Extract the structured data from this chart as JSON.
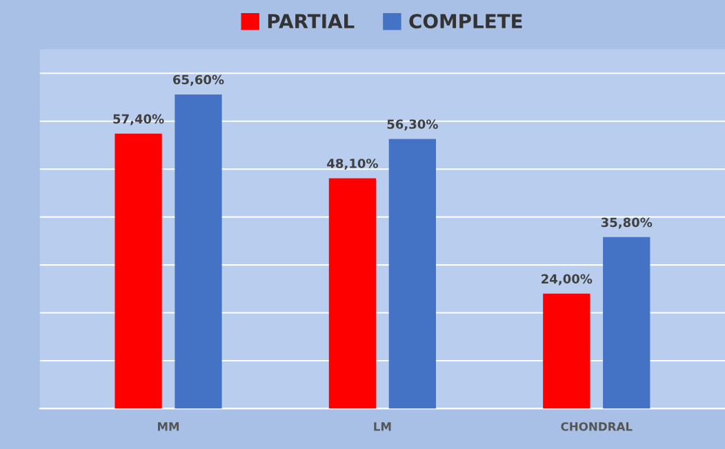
{
  "chart_data": {
    "type": "bar",
    "categories": [
      "MM",
      "LM",
      "CHONDRAL"
    ],
    "series": [
      {
        "name": "PARTIAL",
        "color": "#ff0000",
        "values": [
          57.4,
          48.1,
          24.0
        ],
        "value_labels": [
          "57,40%",
          "48,10%",
          "24,00%"
        ]
      },
      {
        "name": "COMPLETE",
        "color": "#4472c4",
        "values": [
          65.6,
          56.3,
          35.8
        ],
        "value_labels": [
          "65,60%",
          "56,30%",
          "35,80%"
        ]
      }
    ],
    "ylim": [
      0,
      75
    ],
    "yticks": [
      {
        "value": 0,
        "label": null
      },
      {
        "value": 10,
        "label": null
      },
      {
        "value": 20,
        "label": null
      },
      {
        "value": 30,
        "label": null
      },
      {
        "value": 40,
        "label": null
      },
      {
        "value": 50,
        "label": null
      },
      {
        "value": 60,
        "label": null
      },
      {
        "value": 70,
        "label": null
      }
    ],
    "tick_labels": "x",
    "grid": "y",
    "legend": "top"
  }
}
